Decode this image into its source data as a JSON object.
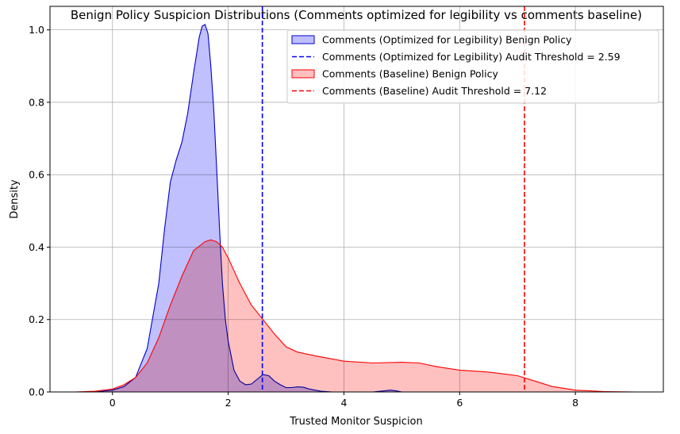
{
  "chart_data": {
    "type": "area",
    "title": "Benign Policy Suspicion Distributions (Comments optimized for legibility vs comments baseline)",
    "xlabel": "Trusted Monitor Suspicion",
    "ylabel": "Density",
    "xlim": [
      -1.08,
      9.52
    ],
    "ylim": [
      0,
      1.065
    ],
    "xticks": [
      0,
      2,
      4,
      6,
      8
    ],
    "xtick_labels": [
      "0",
      "2",
      "4",
      "6",
      "8"
    ],
    "yticks": [
      0.0,
      0.2,
      0.4,
      0.6,
      0.8,
      1.0
    ],
    "ytick_labels": [
      "0.0",
      "0.2",
      "0.4",
      "0.6",
      "0.8",
      "1.0"
    ],
    "grid": true,
    "legend_position": "top-right",
    "series": [
      {
        "name": "Comments (Optimized for Legibility) Benign Policy",
        "color": "#0000cc",
        "fill": "#bfbfff",
        "x": [
          -0.3,
          0.0,
          0.2,
          0.4,
          0.6,
          0.8,
          0.9,
          1.0,
          1.1,
          1.2,
          1.3,
          1.4,
          1.5,
          1.55,
          1.6,
          1.65,
          1.7,
          1.75,
          1.8,
          1.85,
          1.9,
          1.95,
          2.0,
          2.05,
          2.1,
          2.2,
          2.3,
          2.4,
          2.5,
          2.6,
          2.7,
          2.8,
          2.9,
          3.0,
          3.1,
          3.2,
          3.3,
          3.4,
          3.6,
          3.8,
          4.2,
          4.5,
          4.7,
          4.8,
          4.9,
          5.0,
          5.2
        ],
        "y": [
          0.0,
          0.005,
          0.015,
          0.04,
          0.12,
          0.3,
          0.45,
          0.58,
          0.64,
          0.69,
          0.77,
          0.88,
          0.98,
          1.01,
          1.015,
          0.99,
          0.9,
          0.78,
          0.62,
          0.45,
          0.3,
          0.2,
          0.14,
          0.1,
          0.06,
          0.03,
          0.02,
          0.022,
          0.035,
          0.048,
          0.045,
          0.03,
          0.02,
          0.012,
          0.012,
          0.014,
          0.013,
          0.008,
          0.002,
          0.0,
          0.0,
          0.0,
          0.003,
          0.005,
          0.003,
          0.0,
          0.0
        ]
      },
      {
        "name": "Comments (Baseline) Benign Policy",
        "color": "#ff0000",
        "fill": "#ffbfbf",
        "x": [
          -0.65,
          -0.3,
          0.0,
          0.2,
          0.4,
          0.6,
          0.8,
          1.0,
          1.2,
          1.4,
          1.6,
          1.7,
          1.8,
          1.9,
          2.0,
          2.2,
          2.4,
          2.6,
          2.8,
          3.0,
          3.2,
          3.5,
          4.0,
          4.5,
          5.0,
          5.3,
          5.6,
          6.0,
          6.5,
          7.0,
          7.3,
          7.6,
          8.0,
          8.5,
          9.05
        ],
        "y": [
          0.0,
          0.002,
          0.008,
          0.02,
          0.04,
          0.08,
          0.15,
          0.24,
          0.32,
          0.39,
          0.415,
          0.42,
          0.415,
          0.4,
          0.37,
          0.3,
          0.24,
          0.2,
          0.16,
          0.125,
          0.11,
          0.1,
          0.085,
          0.08,
          0.082,
          0.08,
          0.07,
          0.06,
          0.055,
          0.045,
          0.03,
          0.015,
          0.005,
          0.001,
          0.0
        ]
      }
    ],
    "thresholds": [
      {
        "label": "Comments (Optimized for Legibility) Audit Threshold = 2.59",
        "x": 2.59,
        "color": "#0000ff"
      },
      {
        "label": "Comments (Baseline) Audit Threshold = 7.12",
        "x": 7.12,
        "color": "#ff0000"
      }
    ],
    "legend": [
      {
        "label": "Comments (Optimized for Legibility) Benign Policy",
        "kind": "patch",
        "fill": "#bfbfff",
        "edge": "#0000cc"
      },
      {
        "label": "Comments (Optimized for Legibility) Audit Threshold = 2.59",
        "kind": "dash",
        "color": "#0000ff"
      },
      {
        "label": "Comments (Baseline) Benign Policy",
        "kind": "patch",
        "fill": "#ffbfbf",
        "edge": "#ff0000"
      },
      {
        "label": "Comments (Baseline) Audit Threshold = 7.12",
        "kind": "dash",
        "color": "#ff0000"
      }
    ]
  }
}
